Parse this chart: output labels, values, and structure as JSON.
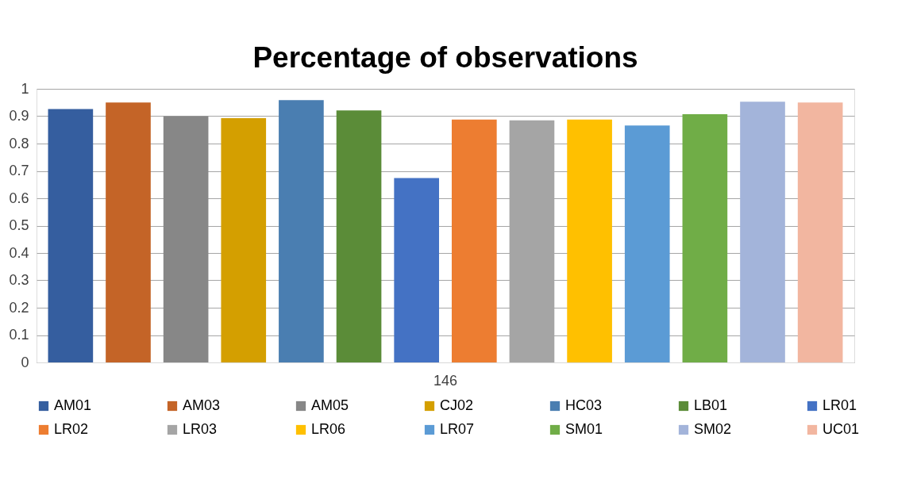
{
  "chart_data": {
    "type": "bar",
    "title": "Percentage of observations",
    "categories": [
      "146"
    ],
    "series": [
      {
        "name": "AM01",
        "color": "#355e9f",
        "values": [
          0.926
        ]
      },
      {
        "name": "AM03",
        "color": "#c46427",
        "values": [
          0.95
        ]
      },
      {
        "name": "AM05",
        "color": "#878787",
        "values": [
          0.9
        ]
      },
      {
        "name": "CJ02",
        "color": "#d49f00",
        "values": [
          0.893
        ]
      },
      {
        "name": "HC03",
        "color": "#4a7eb1",
        "values": [
          0.959
        ]
      },
      {
        "name": "LB01",
        "color": "#5b8c38",
        "values": [
          0.921
        ]
      },
      {
        "name": "LR01",
        "color": "#4472c4",
        "values": [
          0.674
        ]
      },
      {
        "name": "LR02",
        "color": "#ed7d31",
        "values": [
          0.888
        ]
      },
      {
        "name": "LR03",
        "color": "#a5a5a5",
        "values": [
          0.885
        ]
      },
      {
        "name": "LR06",
        "color": "#ffc000",
        "values": [
          0.888
        ]
      },
      {
        "name": "LR07",
        "color": "#5b9bd5",
        "values": [
          0.866
        ]
      },
      {
        "name": "SM01",
        "color": "#70ad47",
        "values": [
          0.907
        ]
      },
      {
        "name": "SM02",
        "color": "#a3b4da",
        "values": [
          0.953
        ]
      },
      {
        "name": "UC01",
        "color": "#f2b6a0",
        "values": [
          0.95
        ]
      }
    ],
    "ylim": [
      0,
      1
    ],
    "yticks": [
      0,
      0.1,
      0.2,
      0.3,
      0.4,
      0.5,
      0.6,
      0.7,
      0.8,
      0.9,
      1
    ],
    "grid": "y",
    "legend": "bottom"
  }
}
